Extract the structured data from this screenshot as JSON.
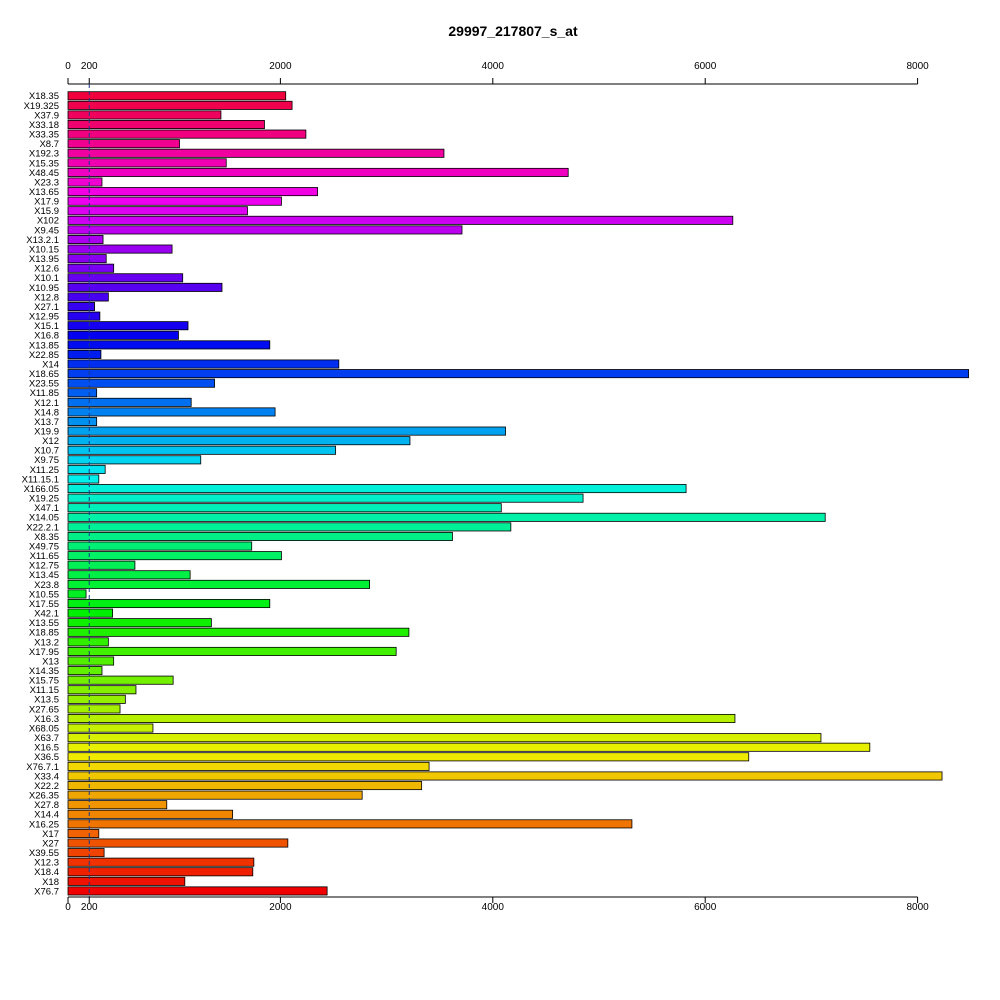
{
  "chart_data": {
    "type": "bar",
    "orientation": "horizontal",
    "title": "29997_217807_s_at",
    "xlim": [
      0,
      8500
    ],
    "x_ticks": [
      0,
      200,
      2000,
      4000,
      6000,
      8000
    ],
    "x_tick_labels": [
      "0",
      "200",
      "2000",
      "4000",
      "6000",
      "8000"
    ],
    "reference_line": 200,
    "categories": [
      "X18.35",
      "X19.325",
      "X37.9",
      "X33.18",
      "X33.35",
      "X8.7",
      "X192.3",
      "X15.35",
      "X48.45",
      "X23.3",
      "X13.65",
      "X17.9",
      "X15.9",
      "X102",
      "X9.45",
      "X13.2.1",
      "X10.15",
      "X13.95",
      "X12.6",
      "X10.1",
      "X10.95",
      "X12.8",
      "X27.1",
      "X12.95",
      "X15.1",
      "X16.8",
      "X13.85",
      "X22.85",
      "X14",
      "X18.65",
      "X23.55",
      "X11.85",
      "X12.1",
      "X14.8",
      "X13.7",
      "X19.9",
      "X12",
      "X10.7",
      "X9.75",
      "X11.25",
      "X11.15.1",
      "X166.05",
      "X19.25",
      "X47.1",
      "X14.05",
      "X22.2.1",
      "X8.35",
      "X49.75",
      "X11.65",
      "X12.75",
      "X13.45",
      "X23.8",
      "X10.55",
      "X17.55",
      "X42.1",
      "X13.55",
      "X18.85",
      "X13.2",
      "X17.95",
      "X13",
      "X14.35",
      "X15.75",
      "X11.15",
      "X13.5",
      "X27.65",
      "X16.3",
      "X68.05",
      "X63.7",
      "X16.5",
      "X36.5",
      "X76.7.1",
      "X33.4",
      "X22.2",
      "X26.35",
      "X27.8",
      "X14.4",
      "X16.25",
      "X17",
      "X27",
      "X39.55",
      "X12.3",
      "X18.4",
      "X18",
      "X76.7"
    ],
    "values": [
      2050,
      2110,
      1440,
      1850,
      2240,
      1050,
      3540,
      1490,
      4710,
      320,
      2350,
      2010,
      1690,
      6260,
      3710,
      330,
      980,
      360,
      430,
      1080,
      1450,
      380,
      250,
      300,
      1130,
      1040,
      1900,
      310,
      2550,
      8480,
      1380,
      270,
      1160,
      1950,
      270,
      4120,
      3220,
      2520,
      1250,
      350,
      290,
      5820,
      4850,
      4080,
      7130,
      4170,
      3620,
      1730,
      2010,
      630,
      1150,
      2840,
      170,
      1900,
      420,
      1350,
      3210,
      380,
      3090,
      430,
      320,
      990,
      640,
      540,
      490,
      6280,
      800,
      7090,
      7550,
      6410,
      3400,
      8230,
      3330,
      2770,
      930,
      1550,
      5310,
      290,
      2070,
      340,
      1750,
      1740,
      1100,
      2440
    ]
  }
}
